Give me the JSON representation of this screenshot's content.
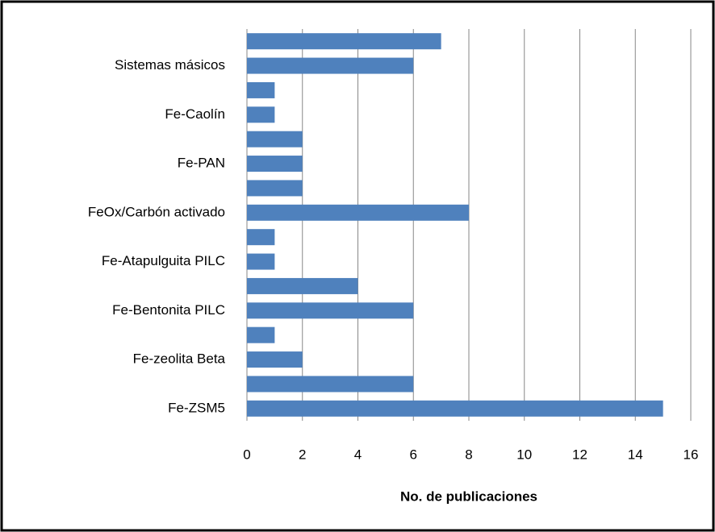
{
  "chart_data": {
    "type": "barh",
    "xlabel": "No. de publicaciones",
    "categories": [
      "Fe-ZSM5",
      null,
      "Fe-zeolita Beta",
      null,
      "Fe-Bentonita PILC",
      null,
      "Fe-Atapulguita PILC",
      null,
      "FeOx/Carbón activado",
      null,
      "Fe-PAN",
      null,
      "Fe-Caolín",
      null,
      "Sistemas másicos",
      null
    ],
    "values": [
      15,
      6,
      2,
      1,
      6,
      4,
      1,
      1,
      8,
      2,
      2,
      2,
      1,
      1,
      6,
      7
    ],
    "color": "#4f81bd",
    "xlim": [
      0,
      16
    ],
    "xticks": [
      0,
      2,
      4,
      6,
      8,
      10,
      12,
      14,
      16
    ],
    "grid": true
  }
}
